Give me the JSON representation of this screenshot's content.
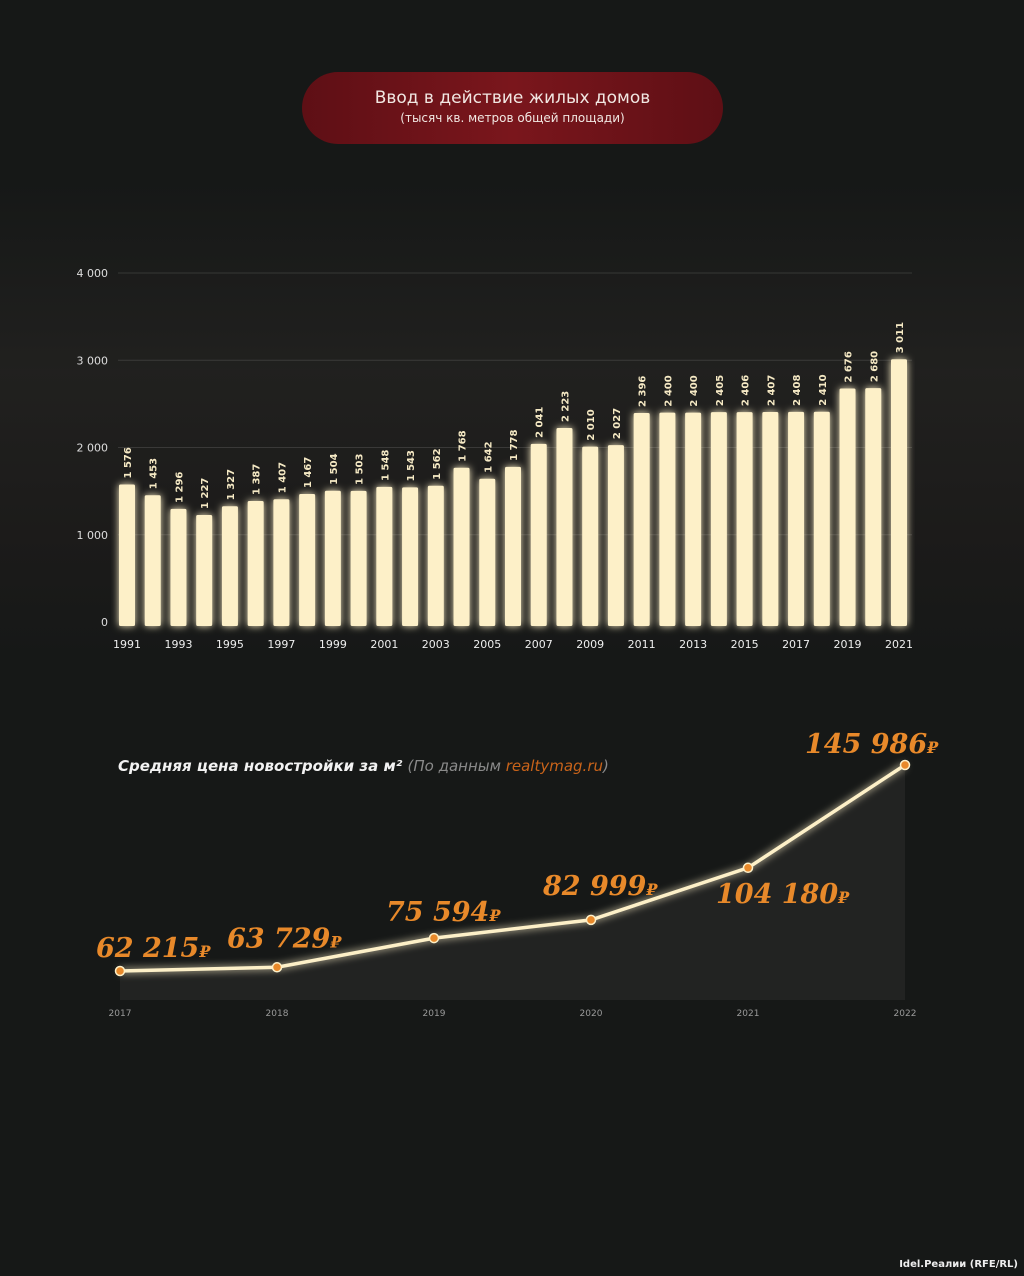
{
  "chart_data": [
    {
      "type": "bar",
      "title": "Ввод в действие жилых домов",
      "subtitle": "(тысяч кв. метров общей площади)",
      "categories": [
        1991,
        1992,
        1993,
        1994,
        1995,
        1996,
        1997,
        1998,
        1999,
        2000,
        2001,
        2002,
        2003,
        2004,
        2005,
        2006,
        2007,
        2008,
        2009,
        2010,
        2011,
        2012,
        2013,
        2014,
        2015,
        2016,
        2017,
        2018,
        2019,
        2020,
        2021
      ],
      "values": [
        1576,
        1453,
        1296,
        1227,
        1327,
        1387,
        1407,
        1467,
        1504,
        1503,
        1548,
        1543,
        1562,
        1768,
        1642,
        1778,
        2041,
        2223,
        2010,
        2027,
        2396,
        2400,
        2400,
        2405,
        2406,
        2407,
        2408,
        2410,
        2676,
        2680,
        3011
      ],
      "yticks": [
        "0",
        "1 000",
        "2 000",
        "3 000",
        "4 000"
      ],
      "ylim": [
        0,
        4000
      ],
      "grid": true,
      "bar_color": "#fdf0c8"
    },
    {
      "type": "line",
      "title": "Средняя цена новостройки за м²",
      "source_prefix": "(По данным ",
      "source_link": "realtymag.ru",
      "source_suffix": ")",
      "x": [
        "2017",
        "2018",
        "2019",
        "2020",
        "2021",
        "2022"
      ],
      "values": [
        62215,
        63729,
        75594,
        82999,
        104180,
        145986
      ],
      "labels": [
        "62 215",
        "63 729",
        "75 594",
        "82 999",
        "104 180",
        "145 986"
      ],
      "currency": "₽",
      "label_color": "#e8892a",
      "line_color": "#fdf0c8"
    }
  ],
  "credit": "Idel.Реалии (RFE/RL)"
}
